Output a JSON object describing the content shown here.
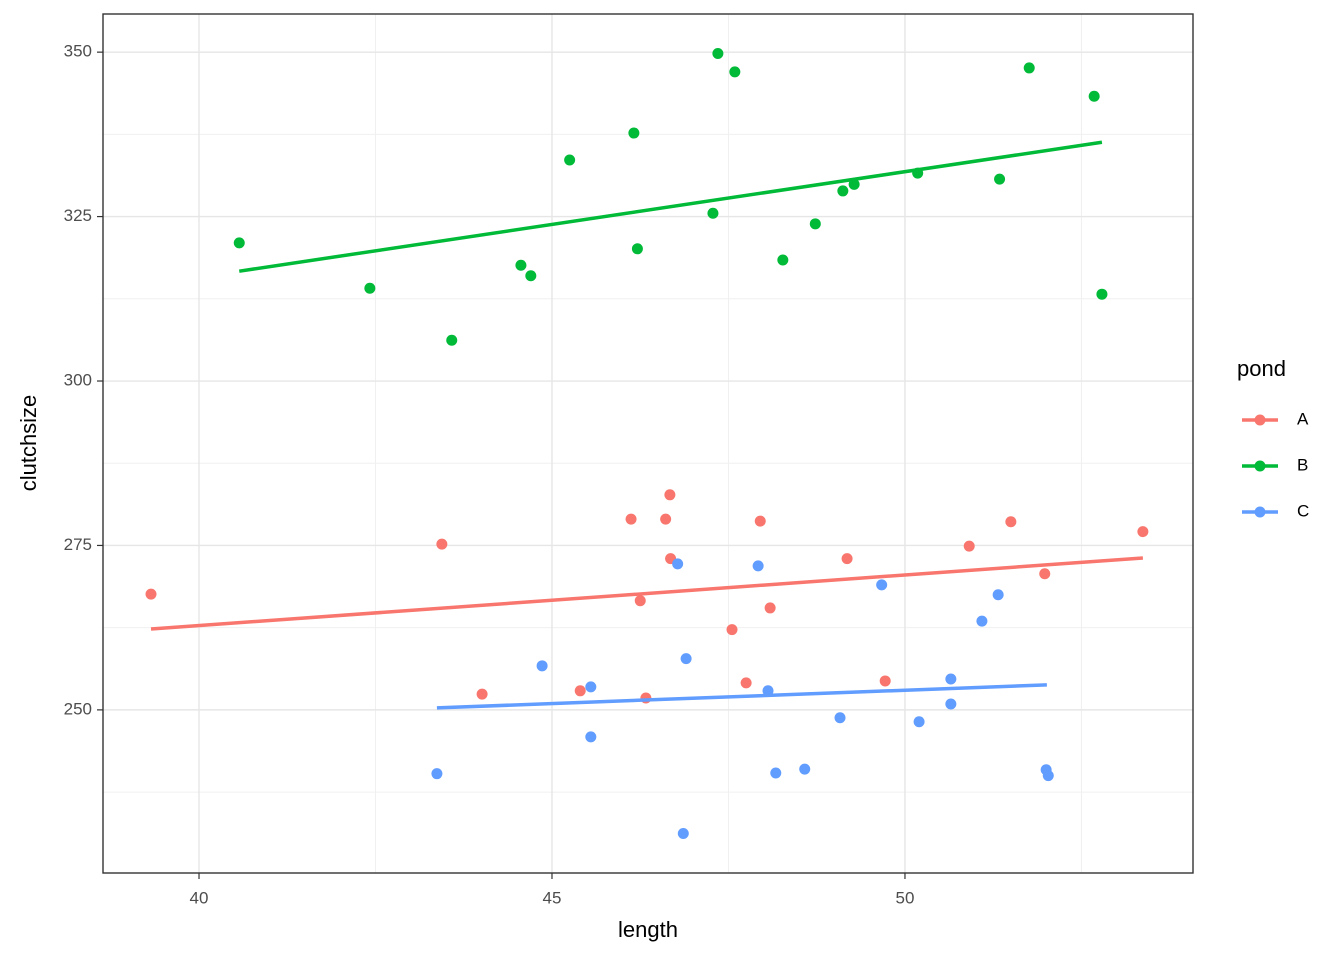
{
  "chart_data": {
    "type": "scatter",
    "x_label": "length",
    "y_label": "clutchsize",
    "legend_title": "pond",
    "legend": "right",
    "grid": true,
    "xlim": [
      38.64,
      54.08
    ],
    "xticks": [
      40,
      45,
      50
    ],
    "minor_xticks": [
      42.5,
      47.5,
      52.5
    ],
    "ylim": [
      225.2,
      355.8
    ],
    "yticks": [
      250,
      275,
      300,
      325,
      350
    ],
    "minor_yticks": [
      237.5,
      262.5,
      287.5,
      312.5,
      337.5
    ],
    "series": [
      {
        "name": "A",
        "color": "#F8766D",
        "x": [
          39.32,
          43.44,
          44.01,
          45.4,
          46.12,
          46.25,
          46.33,
          46.61,
          46.67,
          46.68,
          47.55,
          47.75,
          47.95,
          48.09,
          49.18,
          49.72,
          50.91,
          51.5,
          51.98,
          53.37
        ],
        "values": [
          267.6,
          275.2,
          252.4,
          252.9,
          279.0,
          266.6,
          251.8,
          279.0,
          282.7,
          273.0,
          262.2,
          254.1,
          278.7,
          265.5,
          273.0,
          254.4,
          274.9,
          278.6,
          270.7,
          277.1
        ],
        "fit": {
          "x": [
            39.32,
            53.37
          ],
          "y": [
            262.3,
            273.1
          ]
        }
      },
      {
        "name": "B",
        "color": "#00BA38",
        "x": [
          40.57,
          42.42,
          43.58,
          44.56,
          44.7,
          45.25,
          46.16,
          46.21,
          47.28,
          47.35,
          47.59,
          48.27,
          48.73,
          49.12,
          49.28,
          50.18,
          51.34,
          51.76,
          52.68,
          52.79
        ],
        "values": [
          321.0,
          314.1,
          306.2,
          317.6,
          316.0,
          333.6,
          337.7,
          320.1,
          325.5,
          349.8,
          347.0,
          318.4,
          323.9,
          328.9,
          329.9,
          331.6,
          330.7,
          347.6,
          343.3,
          313.2
        ],
        "fit": {
          "x": [
            40.57,
            52.79
          ],
          "y": [
            316.7,
            336.3
          ]
        }
      },
      {
        "name": "C",
        "color": "#619CFF",
        "x": [
          43.37,
          44.86,
          45.55,
          45.55,
          46.78,
          46.86,
          46.9,
          47.92,
          48.06,
          48.17,
          48.58,
          49.08,
          49.67,
          50.2,
          50.65,
          50.65,
          51.09,
          51.32,
          52.0,
          52.03
        ],
        "values": [
          240.3,
          256.7,
          253.5,
          245.9,
          272.2,
          231.2,
          257.8,
          271.9,
          252.9,
          240.4,
          241.0,
          248.8,
          269.0,
          248.2,
          254.7,
          250.9,
          263.5,
          267.5,
          240.9,
          240.0
        ],
        "fit": {
          "x": [
            43.37,
            52.01
          ],
          "y": [
            250.3,
            253.8
          ]
        }
      }
    ]
  }
}
